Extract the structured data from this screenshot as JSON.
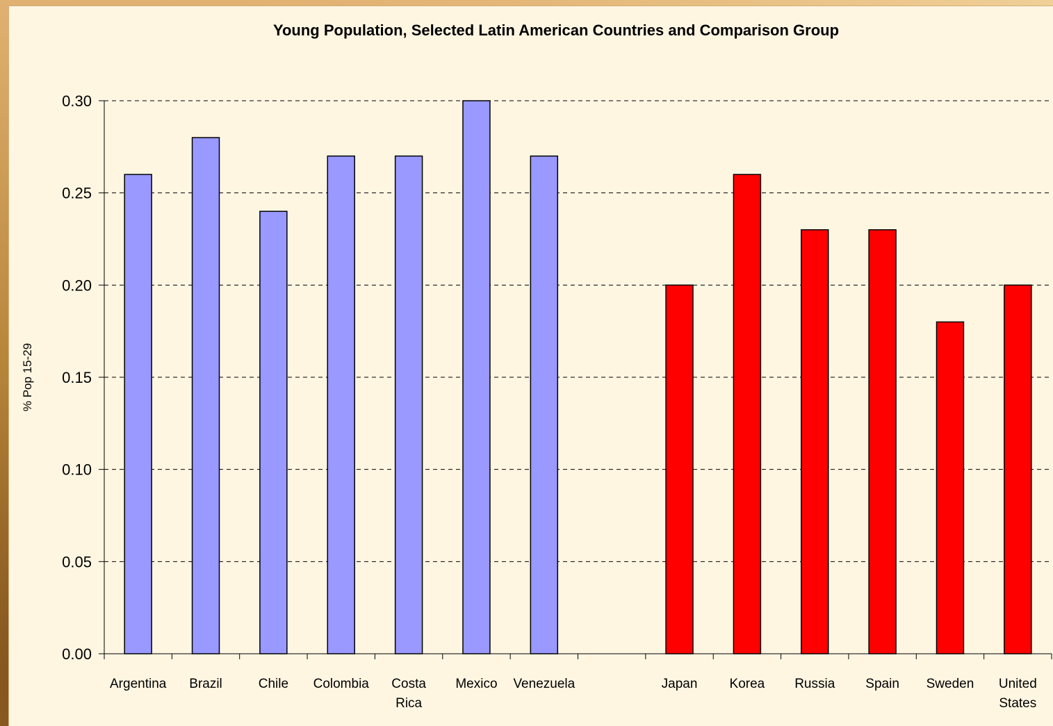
{
  "chart_data": {
    "type": "bar",
    "title": "Young Population, Selected Latin American Countries and Comparison Group",
    "xlabel": "",
    "ylabel": "% Pop 15-29",
    "ylim": [
      0,
      0.3
    ],
    "yticks": [
      "0.00",
      "0.05",
      "0.10",
      "0.15",
      "0.20",
      "0.25",
      "0.30"
    ],
    "grid": true,
    "legend": "none",
    "categories": [
      [
        "Argentina"
      ],
      [
        "Brazil"
      ],
      [
        "Chile"
      ],
      [
        "Colombia"
      ],
      [
        "Costa",
        "Rica"
      ],
      [
        "Mexico"
      ],
      [
        "Venezuela"
      ],
      [
        ""
      ],
      [
        "Japan"
      ],
      [
        "Korea"
      ],
      [
        "Russia"
      ],
      [
        "Spain"
      ],
      [
        "Sweden"
      ],
      [
        "United",
        "States"
      ]
    ],
    "values": [
      0.26,
      0.28,
      0.24,
      0.27,
      0.27,
      0.3,
      0.27,
      null,
      0.2,
      0.26,
      0.23,
      0.23,
      0.18,
      0.2
    ],
    "groups": [
      "latin",
      "latin",
      "latin",
      "latin",
      "latin",
      "latin",
      "latin",
      "gap",
      "comparison",
      "comparison",
      "comparison",
      "comparison",
      "comparison",
      "comparison"
    ],
    "colors": {
      "latin": "#9999ff",
      "comparison": "#ff0000"
    }
  }
}
